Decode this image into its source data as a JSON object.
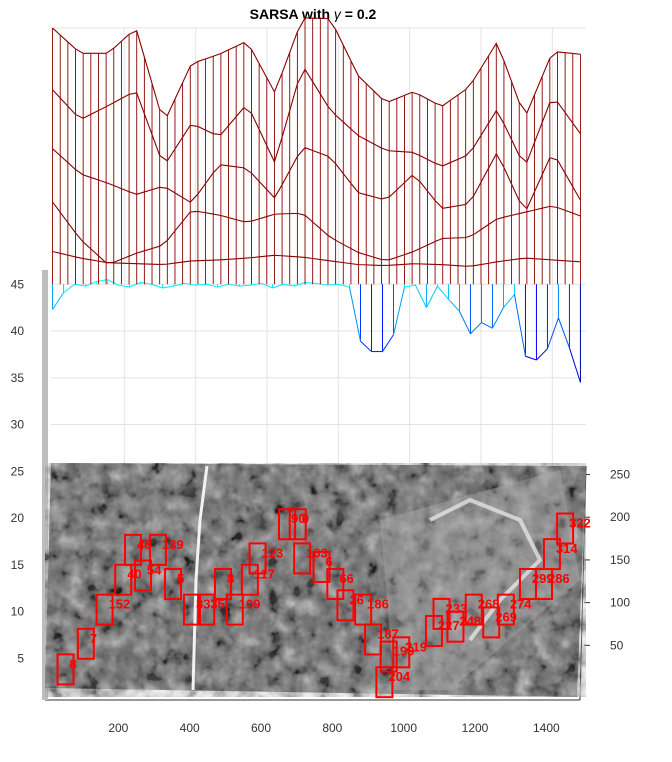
{
  "chart_data": {
    "type": "surface",
    "title_prefix": "SARSA with ",
    "title_symbol": "γ",
    "title_suffix": " = 0.2",
    "zlim": [
      0,
      50
    ],
    "z_ticks": [
      "5",
      "10",
      "15",
      "20",
      "25",
      "30",
      "35",
      "40",
      "45"
    ],
    "x_ticks": [
      "200",
      "400",
      "600",
      "800",
      "1000",
      "1200",
      "1400"
    ],
    "y_ticks": [
      "50",
      "100",
      "150",
      "200",
      "250"
    ],
    "grid": true,
    "colormap": "jet",
    "surface_layers": [
      {
        "level": 45.0,
        "slice_values": [
          48.5,
          47.8,
          47.3,
          47.2,
          47.1,
          47.5,
          47.6,
          47.8,
          48.1,
          47.9,
          47.5,
          47.1,
          47.0,
          47.2,
          47.1,
          46.9,
          47.4,
          47.8,
          47.6,
          47.4
        ]
      },
      {
        "level": 49.0,
        "slice_values": [
          53.8,
          49.8,
          47.1,
          48.3,
          49.2,
          52.9,
          52.4,
          51.6,
          52.5,
          52.6,
          50.0,
          48.4,
          47.5,
          48.5,
          49.9,
          50.0,
          52.0,
          52.7,
          53.4,
          52.3
        ]
      },
      {
        "level": 54.0,
        "slice_values": [
          59.5,
          56.8,
          55.8,
          54.6,
          55.5,
          53.7,
          57.8,
          57.4,
          54.2,
          59.7,
          58.6,
          54.8,
          54.0,
          56.8,
          53.1,
          53.6,
          59.1,
          52.6,
          59.2,
          54.0
        ]
      },
      {
        "level": 60.0,
        "slice_values": [
          65.8,
          62.6,
          64.1,
          65.7,
          57.6,
          62.2,
          60.8,
          64.3,
          58.0,
          68.4,
          63.6,
          60.9,
          59.3,
          59.1,
          57.6,
          58.9,
          63.7,
          57.5,
          65.2,
          61.1
        ]
      },
      {
        "level": 66.0,
        "slice_values": [
          72.4,
          69.7,
          69.7,
          72.4,
          62.2,
          68.6,
          69.6,
          71.0,
          65.5,
          73.5,
          73.4,
          67.3,
          64.4,
          65.6,
          64.0,
          66.1,
          70.9,
          62.8,
          69.9,
          69.6
        ]
      }
    ],
    "drop_values": [
      42.3,
      44.1,
      45.0,
      44.8,
      45.3,
      45.5,
      44.9,
      44.7,
      45.2,
      45.0,
      44.6,
      44.8,
      45.1,
      44.9,
      45.0,
      44.7,
      45.0,
      44.8,
      44.9,
      45.1,
      44.6,
      45.0,
      44.8,
      45.2,
      45.1,
      44.9,
      45.0,
      44.7,
      38.9,
      37.8,
      37.8,
      39.6,
      44.7,
      44.9,
      42.5,
      44.8,
      43.4,
      42.1,
      39.7,
      40.9,
      40.3,
      42.5,
      43.9,
      37.3,
      36.9,
      38.1,
      41.4,
      38.2,
      34.5
    ],
    "state_labels": [
      {
        "label": "8",
        "x": 50,
        "y": 30
      },
      {
        "label": "7",
        "x": 105,
        "y": 60
      },
      {
        "label": "152",
        "x": 155,
        "y": 100
      },
      {
        "label": "40",
        "x": 205,
        "y": 135
      },
      {
        "label": "48",
        "x": 230,
        "y": 170
      },
      {
        "label": "54",
        "x": 260,
        "y": 140
      },
      {
        "label": "139",
        "x": 300,
        "y": 170
      },
      {
        "label": "5",
        "x": 345,
        "y": 130
      },
      {
        "label": "333",
        "x": 400,
        "y": 100
      },
      {
        "label": "75",
        "x": 440,
        "y": 100
      },
      {
        "label": "8",
        "x": 485,
        "y": 130
      },
      {
        "label": "109",
        "x": 520,
        "y": 100
      },
      {
        "label": "117",
        "x": 560,
        "y": 135
      },
      {
        "label": "123",
        "x": 580,
        "y": 160
      },
      {
        "label": "90",
        "x": 660,
        "y": 200
      },
      {
        "label": "0",
        "x": 690,
        "y": 200
      },
      {
        "label": "103",
        "x": 705,
        "y": 160
      },
      {
        "label": "6",
        "x": 760,
        "y": 150
      },
      {
        "label": "66",
        "x": 800,
        "y": 130
      },
      {
        "label": "26",
        "x": 830,
        "y": 105
      },
      {
        "label": "186",
        "x": 880,
        "y": 100
      },
      {
        "label": "187",
        "x": 910,
        "y": 65
      },
      {
        "label": "199",
        "x": 955,
        "y": 45
      },
      {
        "label": "219",
        "x": 990,
        "y": 50
      },
      {
        "label": "204",
        "x": 945,
        "y": 15
      },
      {
        "label": "227",
        "x": 1080,
        "y": 75
      },
      {
        "label": "233",
        "x": 1100,
        "y": 95
      },
      {
        "label": "248",
        "x": 1140,
        "y": 80
      },
      {
        "label": "268",
        "x": 1190,
        "y": 100
      },
      {
        "label": "269",
        "x": 1240,
        "y": 85
      },
      {
        "label": "274",
        "x": 1280,
        "y": 100
      },
      {
        "label": "299",
        "x": 1340,
        "y": 130
      },
      {
        "label": "286",
        "x": 1385,
        "y": 130
      },
      {
        "label": "314",
        "x": 1405,
        "y": 165
      },
      {
        "label": "322",
        "x": 1440,
        "y": 195
      }
    ]
  }
}
